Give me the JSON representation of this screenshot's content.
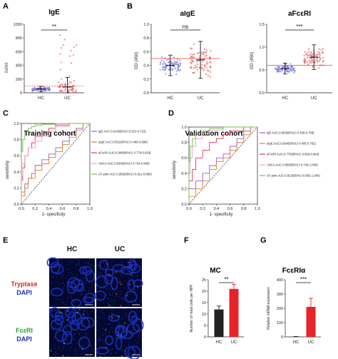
{
  "panels": {
    "A": {
      "label": "A",
      "title": "IgE",
      "ylabel": "IU/ml",
      "ylim": [
        0,
        1000
      ],
      "yticks": [
        0,
        200,
        400,
        600,
        800,
        1000
      ],
      "groups": [
        "HC",
        "UC"
      ],
      "means": [
        55,
        85
      ],
      "sds": [
        40,
        140
      ],
      "sig": "**",
      "ref_line": 100
    },
    "B1": {
      "label": "B",
      "title": "aIgE",
      "ylabel": "OD (450)",
      "ylim": [
        0,
        1.0
      ],
      "yticks": [
        "0.0",
        "0.2",
        "0.4",
        "0.6",
        "0.8",
        "1.0"
      ],
      "groups": [
        "HC",
        "UC"
      ],
      "means": [
        0.4,
        0.48
      ],
      "sds": [
        0.15,
        0.27
      ],
      "sig": "ns",
      "ref_line": 0.5
    },
    "B2": {
      "label": "",
      "title": "aFcεRI",
      "ylabel": "OD (450)",
      "ylim": [
        0,
        1.5
      ],
      "yticks": [
        "0.0",
        "0.5",
        "1.0",
        "1.5"
      ],
      "groups": [
        "HC",
        "UC"
      ],
      "means": [
        0.53,
        0.78
      ],
      "sds": [
        0.12,
        0.27
      ],
      "sig": "***",
      "ref_line": 0.6
    },
    "C": {
      "label": "C",
      "title": "Training cohort",
      "xlabel": "1- specificity",
      "ylabel": "sensitivity",
      "ticks": [
        "0.0",
        "0.2",
        "0.4",
        "0.6",
        "0.8",
        "1.0"
      ],
      "legend": [
        "IgE AUC:0.614(95%CI 0.513-0.715)",
        "aIgE AUC:0.591(95%CI 0.485-0.698)",
        "aFcεRI AUC:0.848(95%CI 0.778-0.919)",
        "ANCA AUC:0.820(95%CI 0.734-0.906)",
        "AF-joint AUC:0.956(95%CI 0.921-0.990)"
      ]
    },
    "D": {
      "label": "D",
      "title": "Validation cohort",
      "xlabel": "1- specificity",
      "ylabel": "sensitivity",
      "ticks": [
        "0.0",
        "0.2",
        "0.4",
        "0.6",
        "0.8",
        "1.0"
      ],
      "legend": [
        "IgE AUC:0.603(95%CI 0.438-0.768)",
        "aIgE AUC:0.584(95%CI 0.405-0.762)",
        "aFcεRI AUC:0.775(95%CI 0.606-0.944)",
        "ANCA AUC:0.880(95%CI 0.749-1.000)",
        "AF-joint AUC:0.923(95%CI 0.862-1.000)"
      ]
    },
    "E": {
      "label": "E",
      "cols": [
        "HC",
        "UC"
      ],
      "rows": [
        {
          "l1": "Tryptase",
          "l2": "DAPI"
        },
        {
          "l1": "FcεRI",
          "l2": "DAPI"
        }
      ]
    },
    "F": {
      "label": "F",
      "title": "MC",
      "ylabel": "Number of mast cells per HPF",
      "ylim": [
        0,
        25
      ],
      "yticks": [
        "0",
        "5",
        "10",
        "15",
        "20",
        "25"
      ],
      "groups": [
        "HC",
        "UC"
      ],
      "values": [
        12,
        21
      ],
      "errs": [
        1.5,
        2
      ],
      "sig": "**"
    },
    "G": {
      "label": "G",
      "title": "FcεRIα",
      "ylabel": "Relative mRNA expression",
      "ylim": [
        0,
        400
      ],
      "yticks": [
        "0",
        "100",
        "200",
        "300",
        "400"
      ],
      "groups": [
        "HC",
        "UC"
      ],
      "values": [
        2,
        210
      ],
      "errs": [
        1,
        60
      ],
      "sig": "***"
    }
  },
  "chart_data": [
    {
      "type": "scatter",
      "title": "IgE",
      "categories": [
        "HC",
        "UC"
      ],
      "mean": [
        55,
        85
      ],
      "sd": [
        40,
        140
      ],
      "ylabel": "IU/ml",
      "ylim": [
        0,
        1000
      ]
    },
    {
      "type": "scatter",
      "title": "aIgE",
      "categories": [
        "HC",
        "UC"
      ],
      "mean": [
        0.4,
        0.48
      ],
      "sd": [
        0.15,
        0.27
      ],
      "ylabel": "OD (450)",
      "ylim": [
        0,
        1.0
      ]
    },
    {
      "type": "scatter",
      "title": "aFcεRI",
      "categories": [
        "HC",
        "UC"
      ],
      "mean": [
        0.53,
        0.78
      ],
      "sd": [
        0.12,
        0.27
      ],
      "ylabel": "OD (450)",
      "ylim": [
        0,
        1.5
      ]
    },
    {
      "type": "line",
      "title": "Training cohort",
      "xlabel": "1- specificity",
      "ylabel": "sensitivity",
      "xlim": [
        0,
        1
      ],
      "ylim": [
        0,
        1
      ],
      "series": [
        {
          "name": "IgE AUC:0.614(95%CI 0.513-0.715)",
          "color": "#9b59d0",
          "x": [
            0,
            0.05,
            0.1,
            0.15,
            0.2,
            0.3,
            0.4,
            0.5,
            0.6,
            0.7,
            0.8,
            0.9,
            1
          ],
          "y": [
            0,
            0.15,
            0.25,
            0.32,
            0.38,
            0.48,
            0.55,
            0.62,
            0.7,
            0.78,
            0.86,
            0.94,
            1
          ]
        },
        {
          "name": "aIgE AUC:0.591(95%CI 0.485-0.698)",
          "color": "#e08030",
          "x": [
            0,
            0.05,
            0.1,
            0.2,
            0.3,
            0.4,
            0.5,
            0.6,
            0.7,
            0.8,
            0.9,
            1
          ],
          "y": [
            0,
            0.1,
            0.2,
            0.32,
            0.42,
            0.5,
            0.58,
            0.65,
            0.74,
            0.83,
            0.92,
            1
          ]
        },
        {
          "name": "aFcεRI AUC:0.848(95%CI 0.778-0.919)",
          "color": "#d8325a",
          "x": [
            0,
            0.02,
            0.05,
            0.1,
            0.15,
            0.2,
            0.3,
            0.4,
            0.5,
            0.7,
            1
          ],
          "y": [
            0,
            0.3,
            0.45,
            0.6,
            0.7,
            0.76,
            0.84,
            0.9,
            0.94,
            0.98,
            1
          ]
        },
        {
          "name": "ANCA AUC:0.820(95%CI 0.734-0.906)",
          "color": "#f0a0c8",
          "x": [
            0,
            0.02,
            0.05,
            0.1,
            0.2,
            0.3,
            0.4,
            0.5,
            0.7,
            1
          ],
          "y": [
            0,
            0.35,
            0.5,
            0.6,
            0.7,
            0.78,
            0.84,
            0.9,
            0.96,
            1
          ]
        },
        {
          "name": "AF-joint AUC:0.956(95%CI 0.921-0.990)",
          "color": "#6cc04a",
          "x": [
            0,
            0.02,
            0.05,
            0.1,
            0.15,
            0.2,
            0.3,
            0.5,
            1
          ],
          "y": [
            0,
            0.65,
            0.8,
            0.9,
            0.94,
            0.96,
            0.98,
            0.99,
            1
          ]
        }
      ]
    },
    {
      "type": "line",
      "title": "Validation cohort",
      "xlabel": "1- specificity",
      "ylabel": "sensitivity",
      "xlim": [
        0,
        1
      ],
      "ylim": [
        0,
        1
      ],
      "series": [
        {
          "name": "IgE AUC:0.603(95%CI 0.438-0.768)",
          "color": "#9b59d0",
          "x": [
            0,
            0.1,
            0.2,
            0.3,
            0.4,
            0.5,
            0.6,
            0.7,
            0.8,
            0.9,
            1
          ],
          "y": [
            0,
            0.2,
            0.3,
            0.4,
            0.5,
            0.6,
            0.65,
            0.75,
            0.85,
            0.95,
            1
          ]
        },
        {
          "name": "aIgE AUC:0.584(95%CI 0.405-0.762)",
          "color": "#e08030",
          "x": [
            0,
            0.1,
            0.2,
            0.3,
            0.4,
            0.5,
            0.6,
            0.7,
            0.8,
            0.9,
            1
          ],
          "y": [
            0,
            0.1,
            0.2,
            0.3,
            0.45,
            0.55,
            0.6,
            0.7,
            0.8,
            0.9,
            1
          ]
        },
        {
          "name": "aFcεRI AUC:0.775(95%CI 0.606-0.944)",
          "color": "#d8325a",
          "x": [
            0,
            0.05,
            0.1,
            0.2,
            0.3,
            0.4,
            0.5,
            0.6,
            0.8,
            1
          ],
          "y": [
            0,
            0.3,
            0.45,
            0.6,
            0.7,
            0.8,
            0.85,
            0.9,
            0.95,
            1
          ]
        },
        {
          "name": "ANCA AUC:0.880(95%CI 0.749-1.000)",
          "color": "#f0a0c8",
          "x": [
            0,
            0.02,
            0.05,
            0.1,
            0.2,
            0.3,
            0.5,
            1
          ],
          "y": [
            0,
            0.4,
            0.6,
            0.75,
            0.85,
            0.92,
            0.96,
            1
          ]
        },
        {
          "name": "AF-joint AUC:0.923(95%CI 0.862-1.000)",
          "color": "#6cc04a",
          "x": [
            0,
            0.02,
            0.05,
            0.1,
            0.2,
            0.3,
            0.5,
            1
          ],
          "y": [
            0,
            0.55,
            0.75,
            0.85,
            0.92,
            0.95,
            0.98,
            1
          ]
        }
      ]
    },
    {
      "type": "bar",
      "title": "MC",
      "categories": [
        "HC",
        "UC"
      ],
      "values": [
        12,
        21
      ],
      "ylabel": "Number of mast cells per HPF",
      "ylim": [
        0,
        25
      ]
    },
    {
      "type": "bar",
      "title": "FcεRIα",
      "categories": [
        "HC",
        "UC"
      ],
      "values": [
        2,
        210
      ],
      "ylabel": "Relative mRNA expression",
      "ylim": [
        0,
        400
      ]
    }
  ],
  "colors": {
    "hc": "#7b7bd6",
    "uc": "#e06a6a",
    "ref": "#ff3b3b",
    "bar_hc": "#222222",
    "bar_uc": "#e8242a",
    "dapi": "#1a2fb8"
  }
}
